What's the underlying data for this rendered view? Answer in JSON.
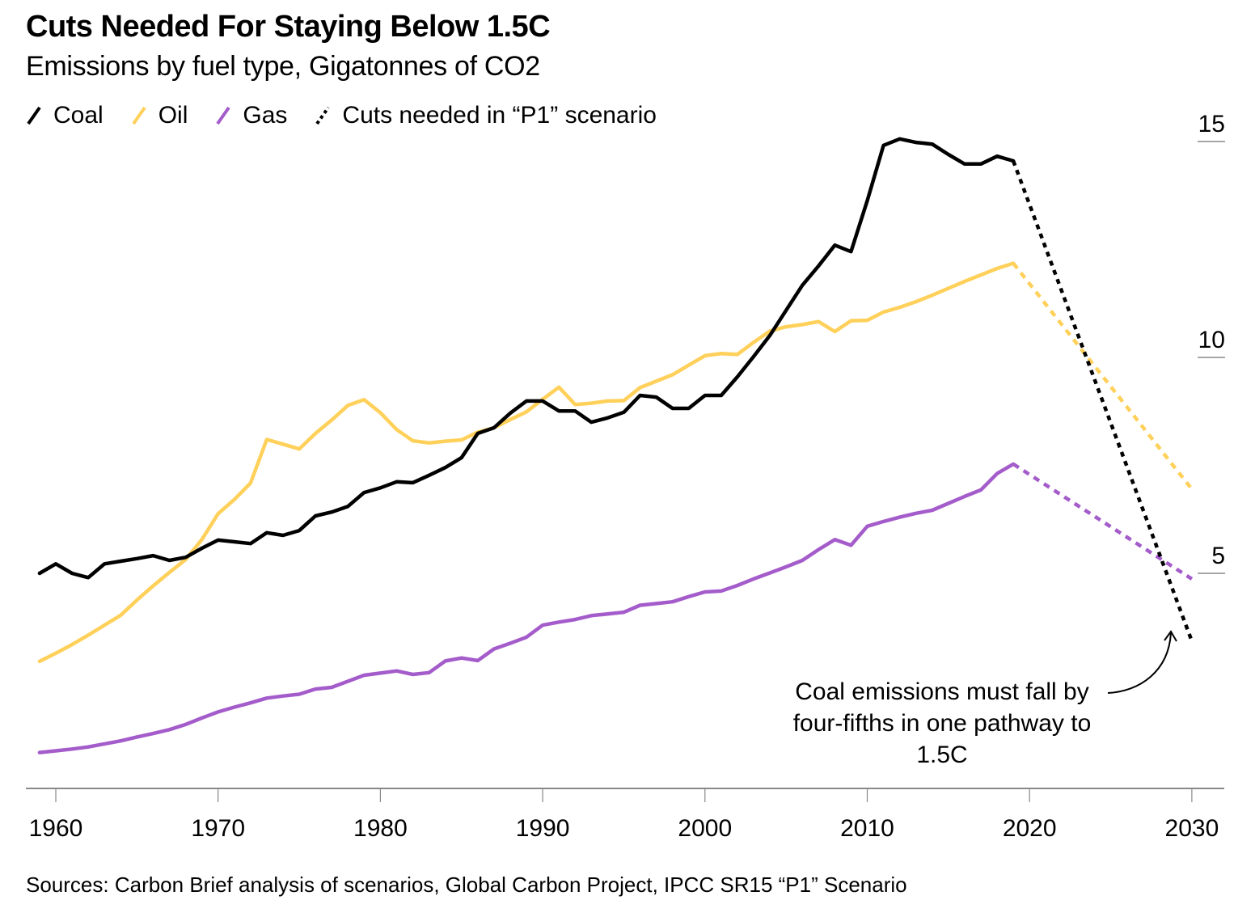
{
  "chart_data": {
    "type": "line",
    "title": "Cuts Needed For Staying Below 1.5C",
    "subtitle": "Emissions by fuel type, Gigatonnes of CO2",
    "xlabel": "",
    "ylabel": "Gigatonnes of CO2",
    "xlim": [
      1958,
      2032
    ],
    "ylim": [
      0,
      15
    ],
    "x_ticks": [
      "1960",
      "1970",
      "1980",
      "1990",
      "2000",
      "2010",
      "2020",
      "2030"
    ],
    "y_ticks": [
      "5",
      "10",
      "15"
    ],
    "grid": false,
    "legend_position": "top-left",
    "legend": [
      {
        "label": "Coal",
        "color": "#000000",
        "style": "solid"
      },
      {
        "label": "Oil",
        "color": "#FFD05A",
        "style": "solid"
      },
      {
        "label": "Gas",
        "color": "#A45CCB",
        "style": "solid"
      },
      {
        "label": "Cuts needed in “P1” scenario",
        "color": "#000000",
        "style": "dotted"
      }
    ],
    "x": [
      1959,
      1960,
      1961,
      1962,
      1963,
      1964,
      1965,
      1966,
      1967,
      1968,
      1969,
      1970,
      1971,
      1972,
      1973,
      1974,
      1975,
      1976,
      1977,
      1978,
      1979,
      1980,
      1981,
      1982,
      1983,
      1984,
      1985,
      1986,
      1987,
      1988,
      1989,
      1990,
      1991,
      1992,
      1993,
      1994,
      1995,
      1996,
      1997,
      1998,
      1999,
      2000,
      2001,
      2002,
      2003,
      2004,
      2005,
      2006,
      2007,
      2008,
      2009,
      2010,
      2011,
      2012,
      2013,
      2014,
      2015,
      2016,
      2017,
      2018,
      2019
    ],
    "series": [
      {
        "name": "Coal",
        "color": "#000000",
        "values": [
          5.0,
          5.22,
          5.0,
          4.9,
          5.22,
          5.28,
          5.34,
          5.41,
          5.3,
          5.37,
          5.58,
          5.77,
          5.73,
          5.69,
          5.94,
          5.88,
          5.99,
          6.33,
          6.42,
          6.55,
          6.87,
          6.98,
          7.12,
          7.1,
          7.27,
          7.45,
          7.68,
          8.24,
          8.37,
          8.71,
          8.99,
          8.99,
          8.76,
          8.76,
          8.5,
          8.6,
          8.73,
          9.12,
          9.08,
          8.82,
          8.82,
          9.12,
          9.12,
          9.55,
          10.02,
          10.51,
          11.09,
          11.67,
          12.12,
          12.6,
          12.45,
          13.63,
          14.91,
          15.06,
          14.98,
          14.94,
          14.7,
          14.48,
          14.48,
          14.66,
          14.55
        ],
        "projection": {
          "x": [
            2019,
            2030
          ],
          "values": [
            14.55,
            3.43
          ]
        }
      },
      {
        "name": "Oil",
        "color": "#FFD05A",
        "values": [
          2.96,
          3.15,
          3.35,
          3.57,
          3.8,
          4.03,
          4.38,
          4.71,
          5.02,
          5.32,
          5.78,
          6.38,
          6.71,
          7.09,
          8.1,
          7.99,
          7.88,
          8.24,
          8.55,
          8.89,
          9.02,
          8.72,
          8.33,
          8.07,
          8.02,
          8.06,
          8.09,
          8.27,
          8.37,
          8.56,
          8.74,
          9.03,
          9.31,
          8.91,
          8.94,
          8.99,
          9.0,
          9.3,
          9.45,
          9.6,
          9.82,
          10.04,
          10.09,
          10.07,
          10.35,
          10.61,
          10.71,
          10.76,
          10.83,
          10.6,
          10.85,
          10.86,
          11.05,
          11.16,
          11.29,
          11.44,
          11.6,
          11.76,
          11.91,
          12.06,
          12.18
        ],
        "projection": {
          "x": [
            2019,
            2030
          ],
          "values": [
            12.18,
            6.95
          ]
        }
      },
      {
        "name": "Gas",
        "color": "#A45CCB",
        "values": [
          0.85,
          0.89,
          0.93,
          0.98,
          1.05,
          1.12,
          1.21,
          1.29,
          1.38,
          1.5,
          1.65,
          1.79,
          1.9,
          2.0,
          2.11,
          2.16,
          2.2,
          2.32,
          2.36,
          2.5,
          2.64,
          2.69,
          2.74,
          2.66,
          2.7,
          2.97,
          3.04,
          2.98,
          3.25,
          3.38,
          3.52,
          3.8,
          3.87,
          3.93,
          4.02,
          4.06,
          4.1,
          4.26,
          4.3,
          4.34,
          4.46,
          4.57,
          4.59,
          4.72,
          4.87,
          5.01,
          5.15,
          5.3,
          5.55,
          5.78,
          5.65,
          6.09,
          6.2,
          6.3,
          6.39,
          6.46,
          6.62,
          6.78,
          6.93,
          7.31,
          7.53
        ],
        "projection": {
          "x": [
            2019,
            2030
          ],
          "values": [
            7.53,
            4.87
          ]
        }
      }
    ],
    "annotations": [
      {
        "text": "Coal emissions must fall by four-fifths in one pathway to 1.5C",
        "points_to": {
          "x": 2029,
          "y": 3.4
        }
      }
    ],
    "source": "Sources: Carbon Brief analysis of scenarios, Global Carbon Project, IPCC SR15 “P1” Scenario"
  }
}
